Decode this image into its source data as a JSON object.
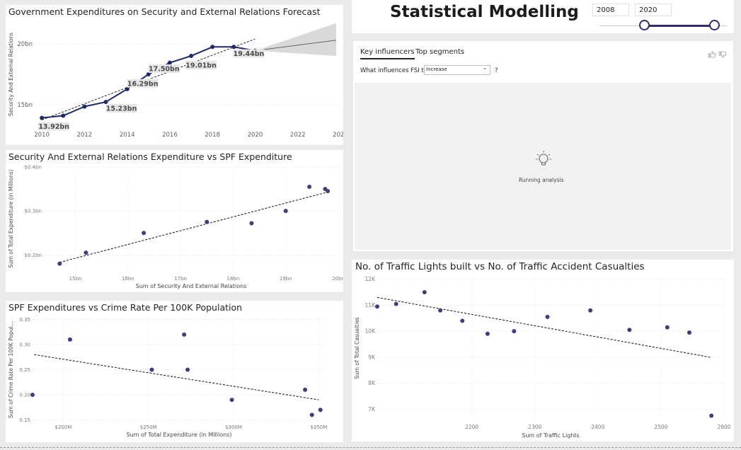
{
  "app": {
    "title": "Statistical Modelling",
    "slider": {
      "start": "2008",
      "end": "2020"
    }
  },
  "forecast": {
    "title": "Government Expenditures on Security and External Relations Forecast",
    "ylabel": "Security And External Relations",
    "yticks": [
      "20bn",
      "15bn"
    ],
    "xticks": [
      "2010",
      "2012",
      "2014",
      "2016",
      "2018",
      "2020",
      "2022",
      "2024"
    ],
    "labels": [
      "13.92bn",
      "15.23bn",
      "16.29bn",
      "17.50bn",
      "19.01bn",
      "19.44bn"
    ]
  },
  "key_influencers": {
    "tabs": [
      "Key influencers",
      "Top segments"
    ],
    "question_prefix": "What influences FSI to",
    "select_value": "Increase",
    "question_suffix": "?",
    "status": "Running analysis"
  },
  "scatter1": {
    "title": "Security And External Relations Expenditure vs SPF Expenditure",
    "xlabel": "Sum of Security And External Relations",
    "ylabel": "Sum of Total Expenditure (in Millions)",
    "xticks": [
      "15bn",
      "16bn",
      "17bn",
      "18bn",
      "19bn",
      "20bn"
    ],
    "yticks": [
      "$0.4bn",
      "$0.3bn",
      "$0.2bn"
    ]
  },
  "scatter2": {
    "title": "SPF Expenditures vs Crime Rate Per 100K Population",
    "xlabel": "Sum of Total Expenditure (in Millions)",
    "ylabel": "Sum of Crime Rate Per 100K Popul...",
    "xticks": [
      "$200M",
      "$250M",
      "$300M",
      "$350M"
    ],
    "yticks": [
      "0.35",
      "0.30",
      "0.25",
      "0.20",
      "0.15"
    ]
  },
  "scatter3": {
    "title": "No. of Traffic Lights built vs No. of Traffic Accident Casualties",
    "xlabel": "Sum of Traffic Lights",
    "ylabel": "Sum of Total Casualties",
    "xticks": [
      "2200",
      "2300",
      "2400",
      "2500",
      "2600"
    ],
    "yticks": [
      "12K",
      "11K",
      "10K",
      "9K",
      "8K",
      "7K"
    ]
  },
  "chart_data": [
    {
      "type": "line",
      "title": "Government Expenditures on Security and External Relations Forecast",
      "ylabel": "Security And External Relations",
      "x": [
        2010,
        2011,
        2012,
        2013,
        2014,
        2015,
        2016,
        2017,
        2018,
        2019,
        2020
      ],
      "y": [
        13.92,
        14.1,
        14.85,
        15.23,
        16.29,
        17.5,
        18.45,
        19.01,
        19.75,
        19.75,
        19.44
      ],
      "forecast_x": [
        2020,
        2023
      ],
      "forecast_y": [
        19.44,
        20.3
      ],
      "forecast_band_upper": [
        19.44,
        21.7
      ],
      "forecast_band_lower": [
        19.44,
        19.0
      ],
      "trend": [
        [
          2010,
          13.75
        ],
        [
          2020,
          20.4
        ]
      ],
      "xlim": [
        2009,
        2024
      ],
      "ylim": [
        13.2,
        21.8
      ],
      "color": "#1f2a6b"
    },
    {
      "type": "scatter",
      "title": "Security And External Relations Expenditure vs SPF Expenditure",
      "xlabel": "Sum of Security And External Relations",
      "ylabel": "Sum of Total Expenditure (in Millions)",
      "x": [
        14.7,
        15.2,
        16.3,
        17.5,
        18.35,
        19.0,
        19.45,
        19.75,
        19.8
      ],
      "y": [
        0.18,
        0.205,
        0.25,
        0.275,
        0.272,
        0.3,
        0.355,
        0.35,
        0.345
      ],
      "trend": [
        [
          14.7,
          0.183
        ],
        [
          19.8,
          0.343
        ]
      ],
      "xlim": [
        14.4,
        20.0
      ],
      "ylim": [
        0.165,
        0.4
      ],
      "color": "#3c3f7a"
    },
    {
      "type": "scatter",
      "title": "SPF Expenditures vs Crime Rate Per 100K Population",
      "xlabel": "Sum of Total Expenditure (in Millions)",
      "ylabel": "Sum of Crime Rate Per 100K Popul...",
      "x": [
        182,
        204,
        252,
        271,
        273,
        299,
        342,
        346,
        351
      ],
      "y": [
        0.2,
        0.31,
        0.25,
        0.32,
        0.25,
        0.19,
        0.21,
        0.16,
        0.17
      ],
      "trend": [
        [
          183,
          0.28
        ],
        [
          350,
          0.19
        ]
      ],
      "xlim": [
        182,
        354
      ],
      "ylim": [
        0.145,
        0.355
      ],
      "color": "#3c3f7a"
    },
    {
      "type": "scatter",
      "title": "No. of Traffic Lights built vs No. of Traffic Accident Casualties",
      "xlabel": "Sum of Traffic Lights",
      "ylabel": "Sum of Total Casualties",
      "x": [
        2050,
        2080,
        2125,
        2150,
        2185,
        2225,
        2267,
        2320,
        2388,
        2450,
        2510,
        2545,
        2580
      ],
      "y": [
        10950,
        11050,
        11500,
        10800,
        10400,
        9900,
        10000,
        10550,
        10800,
        10050,
        10150,
        9950,
        6750
      ],
      "trend": [
        [
          2050,
          11300
        ],
        [
          2578,
          9000
        ]
      ],
      "xlim": [
        2050,
        2600
      ],
      "ylim": [
        6600,
        12100
      ],
      "color": "#3c3f7a"
    }
  ]
}
